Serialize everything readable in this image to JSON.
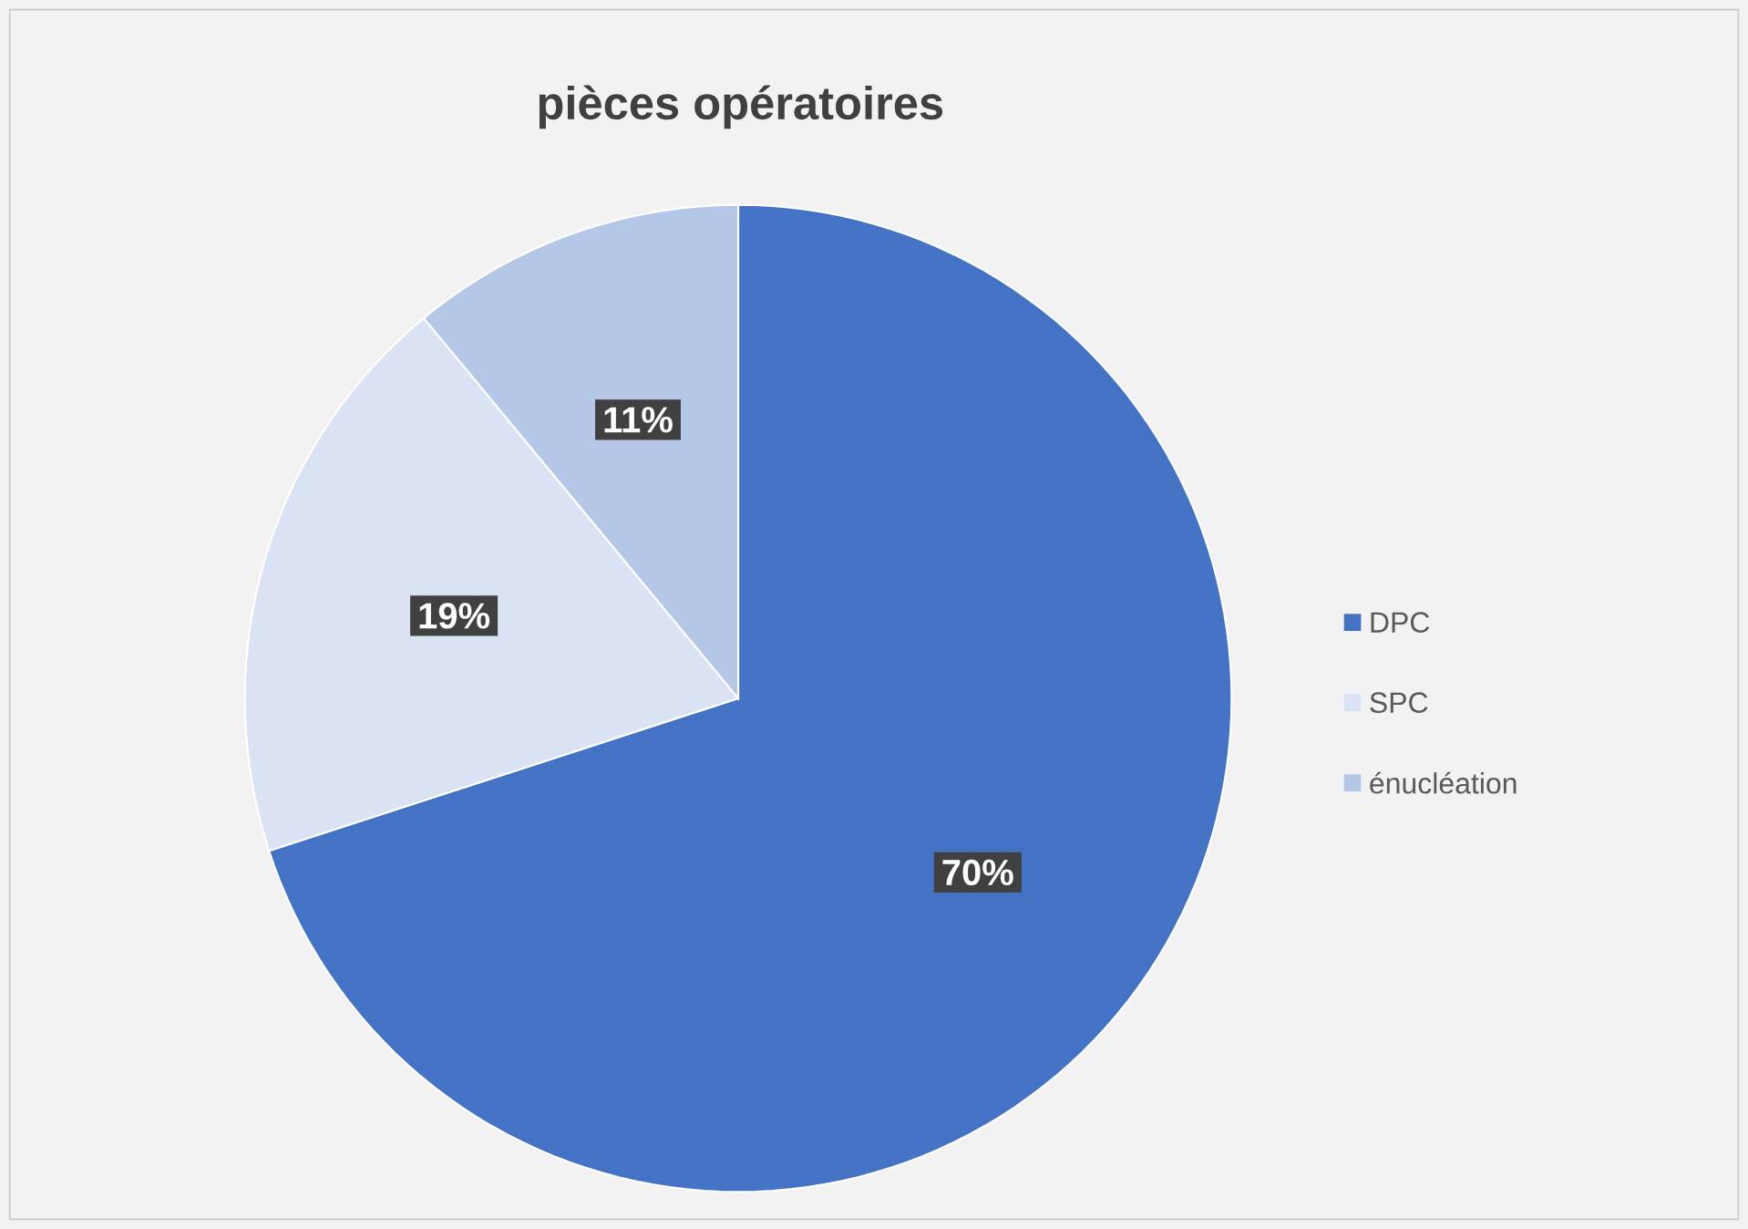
{
  "chart_data": {
    "type": "pie",
    "title": "pièces opératoires",
    "categories": [
      "DPC",
      "SPC",
      "énucléation"
    ],
    "values": [
      70,
      19,
      11
    ],
    "colors": [
      "#4472c4",
      "#dae3f3",
      "#b4c7e7"
    ],
    "value_labels": [
      "70%",
      "19%",
      "11%"
    ],
    "legend": "right"
  }
}
